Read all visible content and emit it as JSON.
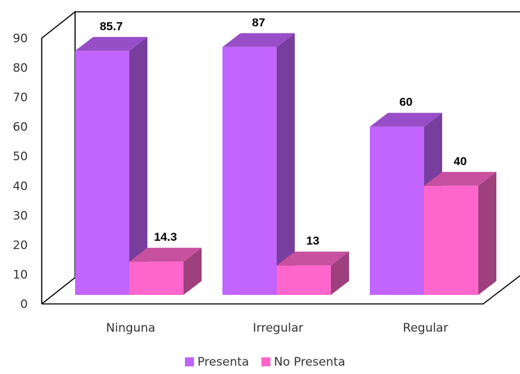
{
  "chart_data": {
    "type": "bar",
    "categories": [
      "Ninguna",
      "Irregular",
      "Regular"
    ],
    "series": [
      {
        "name": "Presenta",
        "values": [
          85.7,
          87,
          60
        ],
        "color": "#c264ff"
      },
      {
        "name": "No Presenta",
        "values": [
          14.3,
          13,
          40
        ],
        "color": "#ff66cc"
      }
    ],
    "data_labels": [
      [
        "85.7",
        "87",
        "60"
      ],
      [
        "14.3",
        "13",
        "40"
      ]
    ],
    "yticks": [
      "0",
      "10",
      "20",
      "30",
      "40",
      "50",
      "60",
      "70",
      "80",
      "90"
    ],
    "ylim": [
      0,
      90
    ],
    "grid": false,
    "style": "3d-clustered",
    "legend_position": "bottom",
    "title": "",
    "xlabel": "",
    "ylabel": ""
  }
}
